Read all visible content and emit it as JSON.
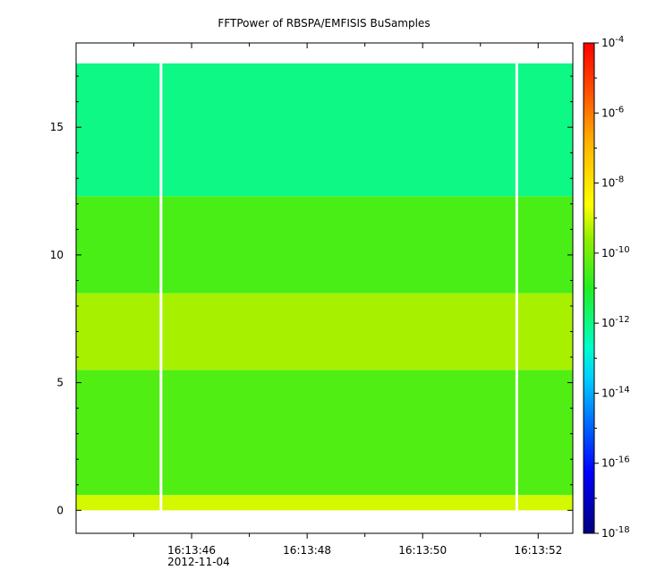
{
  "chart_data": {
    "type": "heatmap",
    "title": "FFTPower of RBSPA/EMFISIS  BuSamples",
    "xlabel": "",
    "ylabel": "",
    "x_ticks": [
      {
        "value": 46,
        "label": "16:13:46",
        "sublabel": "2012-11-04"
      },
      {
        "value": 48,
        "label": "16:13:48"
      },
      {
        "value": 50,
        "label": "16:13:50"
      },
      {
        "value": 52,
        "label": "16:13:52"
      }
    ],
    "x_unit": "seconds after 16:13:00 UTC on 2012-11-04",
    "xlim": [
      44.0,
      52.6
    ],
    "y_ticks": [
      0,
      5,
      10,
      15
    ],
    "ylim": [
      -0.9,
      18.3
    ],
    "data_extent_y": [
      0,
      17.5
    ],
    "data_gaps_x": [
      45.47,
      51.63
    ],
    "colorbar": {
      "scale": "log",
      "range": [
        1e-18,
        0.0001
      ],
      "ticks": [
        {
          "base": "10",
          "exp": "-18"
        },
        {
          "base": "10",
          "exp": "-16"
        },
        {
          "base": "10",
          "exp": "-14"
        },
        {
          "base": "10",
          "exp": "-12"
        },
        {
          "base": "10",
          "exp": "-10"
        },
        {
          "base": "10",
          "exp": "-8"
        },
        {
          "base": "10",
          "exp": "-6"
        },
        {
          "base": "10",
          "exp": "-4"
        }
      ]
    },
    "bands": [
      {
        "ymin": 0.0,
        "ymax": 0.6,
        "log_power": -9.0
      },
      {
        "ymin": 0.6,
        "ymax": 5.5,
        "log_power": -10.4
      },
      {
        "ymin": 5.5,
        "ymax": 8.5,
        "log_power": -9.4
      },
      {
        "ymin": 8.5,
        "ymax": 12.3,
        "log_power": -10.5
      },
      {
        "ymin": 12.3,
        "ymax": 17.5,
        "log_power": -12.0
      }
    ],
    "grid": false,
    "legend": "colorbar-right"
  }
}
